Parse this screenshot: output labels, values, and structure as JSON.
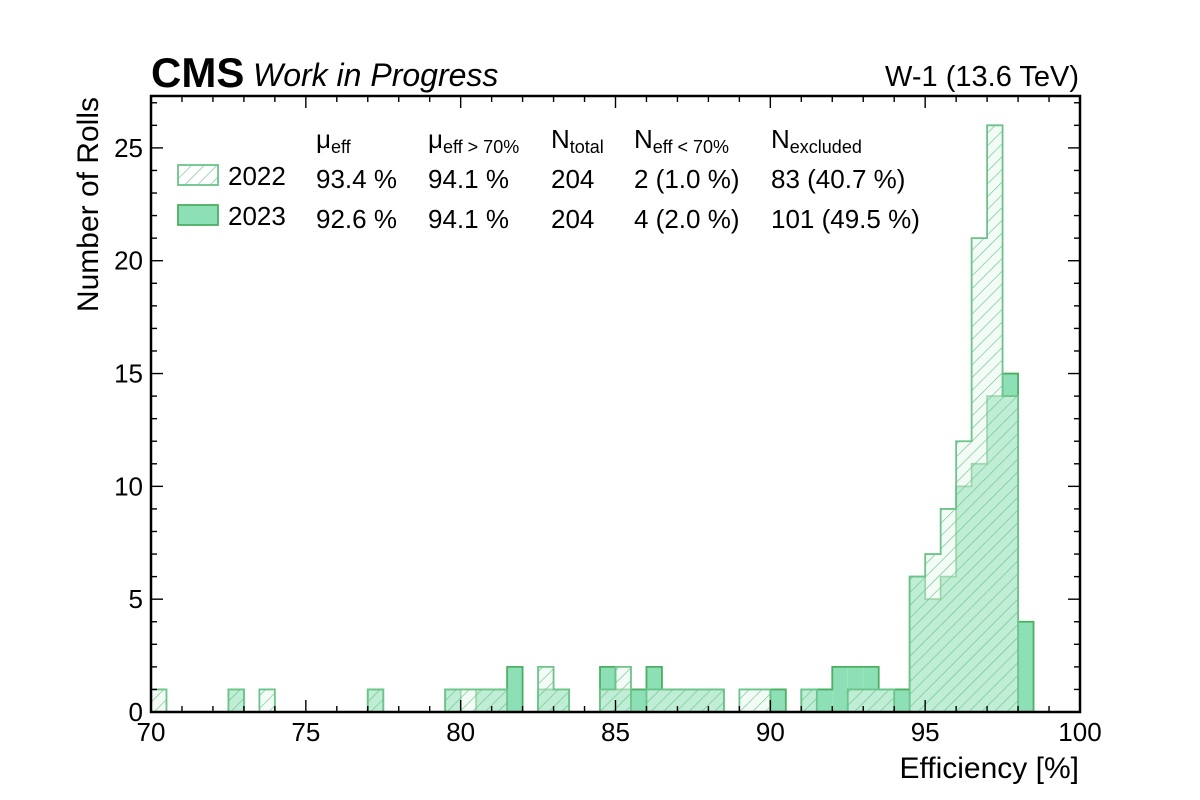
{
  "header": {
    "experiment": "CMS",
    "status": "Work in Progress",
    "run_label": "W-1 (13.6 TeV)"
  },
  "legend": {
    "col_headers": [
      {
        "base": "μ",
        "sub": "eff"
      },
      {
        "base": "μ",
        "sub": "eff > 70%"
      },
      {
        "base": "N",
        "sub": "total"
      },
      {
        "base": "N",
        "sub": "eff < 70%"
      },
      {
        "base": "N",
        "sub": "excluded"
      }
    ],
    "rows": [
      {
        "label": "2022",
        "values": [
          "93.4 %",
          "94.1 %",
          "204",
          "2 (1.0 %)",
          "83 (40.7 %)"
        ]
      },
      {
        "label": "2023",
        "values": [
          "92.6 %",
          "94.1 %",
          "204",
          "4 (2.0 %)",
          "101 (49.5 %)"
        ]
      }
    ]
  },
  "colors": {
    "fill_2023": "#8ddfb5",
    "edge_2023": "#4caf62",
    "fill_2022": "#eaf8ef",
    "hatch_2022": "#6cc48a"
  },
  "chart_data": {
    "type": "bar",
    "xlabel": "Efficiency [%]",
    "ylabel": "Number of Rolls",
    "xlim": [
      70,
      100
    ],
    "ylim": [
      0,
      27.3
    ],
    "bin_width": 0.5,
    "x_ticks": [
      70,
      75,
      80,
      85,
      90,
      95,
      100
    ],
    "y_ticks": [
      0,
      5,
      10,
      15,
      20,
      25
    ],
    "grid": false,
    "legend_position": "top-left",
    "series": [
      {
        "name": "2022",
        "style": "hatched",
        "bins": [
          [
            70.0,
            1
          ],
          [
            72.5,
            1
          ],
          [
            73.5,
            1
          ],
          [
            77.0,
            1
          ],
          [
            79.5,
            1
          ],
          [
            80.0,
            1
          ],
          [
            80.5,
            1
          ],
          [
            81.0,
            1
          ],
          [
            82.5,
            2
          ],
          [
            83.0,
            1
          ],
          [
            84.5,
            1
          ],
          [
            85.0,
            2
          ],
          [
            86.0,
            1
          ],
          [
            86.5,
            1
          ],
          [
            87.0,
            1
          ],
          [
            87.5,
            1
          ],
          [
            88.0,
            1
          ],
          [
            89.0,
            1
          ],
          [
            89.5,
            1
          ],
          [
            91.0,
            1
          ],
          [
            92.5,
            1
          ],
          [
            93.0,
            1
          ],
          [
            93.5,
            1
          ],
          [
            94.5,
            6
          ],
          [
            95.0,
            7
          ],
          [
            95.5,
            9
          ],
          [
            96.0,
            12
          ],
          [
            96.5,
            21
          ],
          [
            97.0,
            26
          ],
          [
            97.5,
            14
          ]
        ]
      },
      {
        "name": "2023",
        "style": "filled",
        "bins": [
          [
            72.5,
            1
          ],
          [
            77.0,
            1
          ],
          [
            79.5,
            1
          ],
          [
            80.5,
            1
          ],
          [
            81.0,
            1
          ],
          [
            81.5,
            2
          ],
          [
            82.5,
            1
          ],
          [
            83.0,
            1
          ],
          [
            84.5,
            2
          ],
          [
            85.0,
            1
          ],
          [
            85.5,
            1
          ],
          [
            86.0,
            2
          ],
          [
            86.5,
            1
          ],
          [
            87.0,
            1
          ],
          [
            87.5,
            1
          ],
          [
            88.0,
            1
          ],
          [
            90.0,
            1
          ],
          [
            91.0,
            1
          ],
          [
            91.5,
            1
          ],
          [
            92.0,
            2
          ],
          [
            92.5,
            2
          ],
          [
            93.0,
            2
          ],
          [
            93.5,
            1
          ],
          [
            94.0,
            1
          ],
          [
            94.5,
            6
          ],
          [
            95.0,
            5
          ],
          [
            95.5,
            6
          ],
          [
            96.0,
            10
          ],
          [
            96.5,
            11
          ],
          [
            97.0,
            14
          ],
          [
            97.5,
            15
          ],
          [
            98.0,
            4
          ]
        ]
      }
    ]
  }
}
